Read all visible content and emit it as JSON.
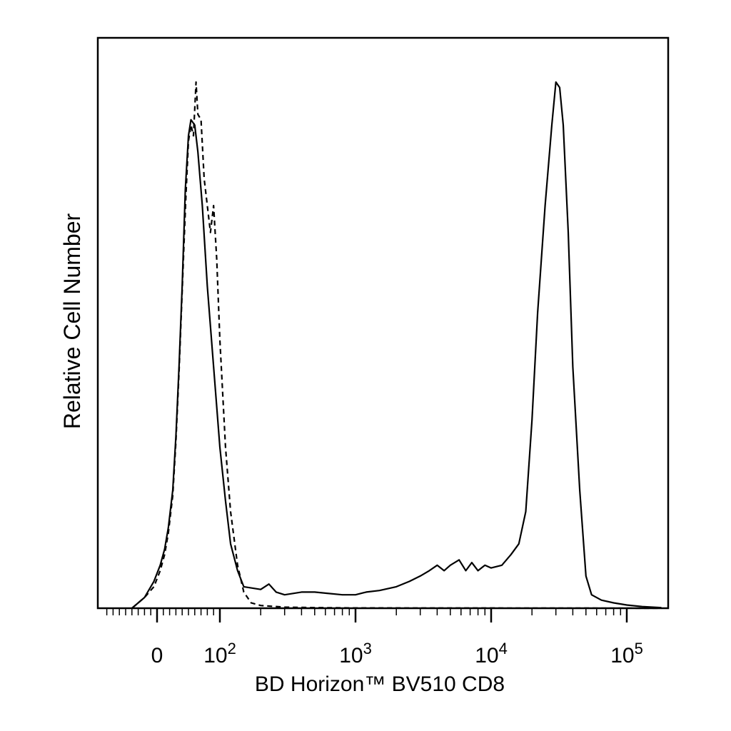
{
  "chart_data": {
    "type": "line",
    "xlabel": "BD Horizon™ BV510 CD8",
    "ylabel": "Relative Cell Number",
    "x_scale": "biexponential",
    "x_tick_labels": [
      {
        "value": 0,
        "base": "0",
        "exp": ""
      },
      {
        "value": 100,
        "base": "10",
        "exp": "2"
      },
      {
        "value": 1000,
        "base": "10",
        "exp": "3"
      },
      {
        "value": 10000,
        "base": "10",
        "exp": "4"
      },
      {
        "value": 100000,
        "base": "10",
        "exp": "5"
      }
    ],
    "y_ticks": "none",
    "series": [
      {
        "style": "solid",
        "points": [
          [
            -40,
            0
          ],
          [
            -20,
            2
          ],
          [
            -5,
            5
          ],
          [
            5,
            8
          ],
          [
            12,
            11
          ],
          [
            18,
            15
          ],
          [
            25,
            22
          ],
          [
            30,
            32
          ],
          [
            35,
            45
          ],
          [
            40,
            60
          ],
          [
            45,
            78
          ],
          [
            50,
            88
          ],
          [
            54,
            91
          ],
          [
            60,
            90
          ],
          [
            65,
            85
          ],
          [
            72,
            75
          ],
          [
            80,
            60
          ],
          [
            90,
            45
          ],
          [
            100,
            30
          ],
          [
            110,
            20
          ],
          [
            120,
            12
          ],
          [
            135,
            7
          ],
          [
            150,
            4
          ],
          [
            200,
            3.5
          ],
          [
            230,
            4.5
          ],
          [
            260,
            3
          ],
          [
            300,
            2.5
          ],
          [
            400,
            3
          ],
          [
            500,
            3
          ],
          [
            600,
            2.8
          ],
          [
            800,
            2.5
          ],
          [
            1000,
            2.5
          ],
          [
            1200,
            3
          ],
          [
            1500,
            3.3
          ],
          [
            2000,
            4
          ],
          [
            2500,
            5
          ],
          [
            3000,
            6
          ],
          [
            3500,
            7
          ],
          [
            4000,
            8
          ],
          [
            4500,
            7
          ],
          [
            5000,
            8
          ],
          [
            5800,
            9
          ],
          [
            6500,
            7
          ],
          [
            7200,
            8.5
          ],
          [
            8000,
            7
          ],
          [
            9000,
            8
          ],
          [
            10000,
            7.5
          ],
          [
            12000,
            8
          ],
          [
            14000,
            10
          ],
          [
            16000,
            12
          ],
          [
            18000,
            18
          ],
          [
            20000,
            35
          ],
          [
            22000,
            55
          ],
          [
            25000,
            75
          ],
          [
            28000,
            90
          ],
          [
            30000,
            98
          ],
          [
            32000,
            97
          ],
          [
            34000,
            90
          ],
          [
            37000,
            70
          ],
          [
            40000,
            45
          ],
          [
            45000,
            22
          ],
          [
            50000,
            6
          ],
          [
            55000,
            2.5
          ],
          [
            65000,
            1.5
          ],
          [
            80000,
            1
          ],
          [
            100000,
            0.6
          ],
          [
            130000,
            0.3
          ],
          [
            180000,
            0.1
          ]
        ]
      },
      {
        "style": "dashed",
        "points": [
          [
            -40,
            0
          ],
          [
            -20,
            2
          ],
          [
            -5,
            4
          ],
          [
            5,
            7
          ],
          [
            12,
            10
          ],
          [
            18,
            14
          ],
          [
            25,
            21
          ],
          [
            30,
            31
          ],
          [
            35,
            44
          ],
          [
            40,
            59
          ],
          [
            43,
            68
          ],
          [
            46,
            77
          ],
          [
            50,
            87
          ],
          [
            54,
            90
          ],
          [
            58,
            88
          ],
          [
            62,
            98
          ],
          [
            65,
            92
          ],
          [
            70,
            91
          ],
          [
            75,
            80
          ],
          [
            80,
            75
          ],
          [
            85,
            70
          ],
          [
            90,
            75
          ],
          [
            95,
            65
          ],
          [
            100,
            50
          ],
          [
            110,
            30
          ],
          [
            120,
            18
          ],
          [
            135,
            8
          ],
          [
            150,
            3
          ],
          [
            170,
            1
          ],
          [
            200,
            0.5
          ],
          [
            300,
            0.2
          ],
          [
            500,
            0.1
          ],
          [
            1000,
            0.05
          ],
          [
            180000,
            0
          ]
        ]
      }
    ]
  }
}
